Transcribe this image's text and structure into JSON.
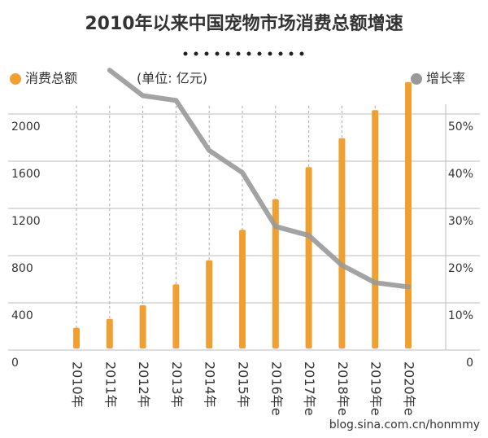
{
  "chart_data": {
    "type": "bar_line",
    "title": "2010年以来中国宠物市场消费总额增速",
    "unit_note": "(单位: 亿元)",
    "categories": [
      "2010年",
      "2011年",
      "2012年",
      "2013年",
      "2014年",
      "2015年",
      "2016年e",
      "2017年e",
      "2018年e",
      "2019年e",
      "2020年e"
    ],
    "series": [
      {
        "name": "消费总额",
        "color": "#f0a030",
        "values": [
          258,
          333,
          449,
          626,
          830,
          1088,
          1347,
          1619,
          1864,
          2102,
          2340
        ]
      },
      {
        "name": "增长率",
        "color": "#999999",
        "axis": "y2",
        "values": [
          null,
          61,
          55.6,
          54.6,
          44,
          39.3,
          27.9,
          26,
          19.7,
          16,
          15.1
        ]
      }
    ],
    "ylim": [
      0,
      2600
    ],
    "yticks": [
      0,
      400,
      800,
      1200,
      1600,
      2000
    ],
    "y2lim": [
      0,
      65
    ],
    "y2ticks": [
      0,
      {
        "value": 10,
        "label": "10%"
      },
      {
        "value": 20,
        "label": "20%"
      },
      {
        "value": 30,
        "label": "30%"
      },
      {
        "value": 40,
        "label": "40%"
      },
      {
        "value": 50,
        "label": "50%"
      }
    ],
    "grid": true,
    "watermark": "blog.sina.com.cn/honmmy"
  }
}
